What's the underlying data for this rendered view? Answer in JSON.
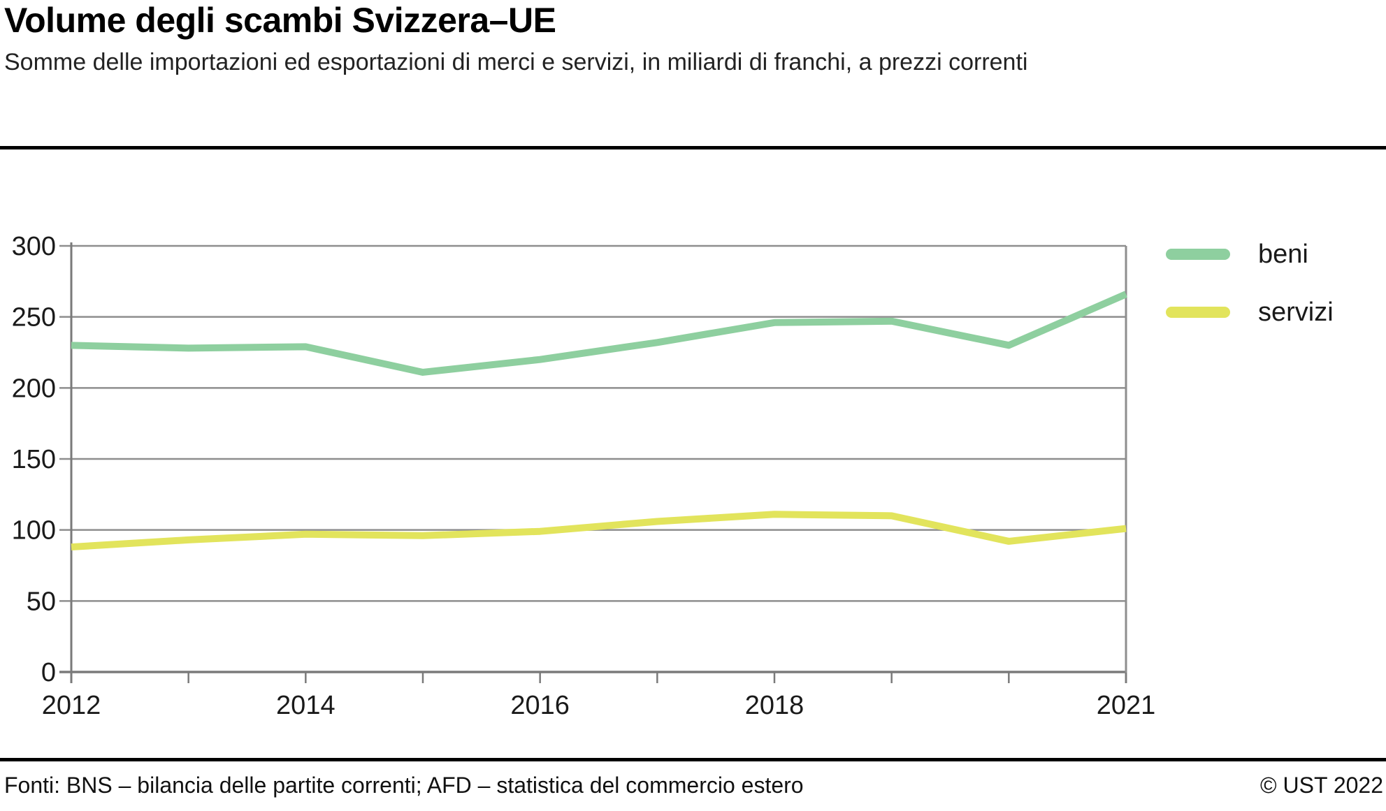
{
  "header": {
    "title": "Volume degli scambi Svizzera–UE",
    "subtitle": "Somme delle importazioni ed esportazioni di merci e servizi, in miliardi di franchi, a prezzi correnti"
  },
  "footer": {
    "sources": "Fonti: BNS – bilancia delle partite correnti; AFD – statistica del commercio estero",
    "copyright": "© UST 2022"
  },
  "colors": {
    "beni_line": "#8ecf9f",
    "servizi_line": "#e2e45c",
    "grid": "#8e8e8e",
    "axis": "#7a7a7a",
    "text": "#1a1a1a",
    "divider": "#000000"
  },
  "chart_data": {
    "type": "line",
    "title": "Volume degli scambi Svizzera–UE",
    "subtitle": "Somme delle importazioni ed esportazioni di merci e servizi, in miliardi di franchi, a prezzi correnti",
    "x": [
      2012,
      2013,
      2014,
      2015,
      2016,
      2017,
      2018,
      2019,
      2020,
      2021
    ],
    "xtick_labels": [
      "2012",
      "2014",
      "2016",
      "2018",
      "2021"
    ],
    "yticks": [
      0,
      50,
      100,
      150,
      200,
      250,
      300
    ],
    "ylim": [
      0,
      300
    ],
    "xlabel": "",
    "ylabel": "",
    "grid": true,
    "legend_position": "outside-top-right",
    "series": [
      {
        "name": "beni",
        "color": "#8ecf9f",
        "values": [
          230,
          228,
          229,
          211,
          220,
          232,
          246,
          247,
          230,
          266
        ]
      },
      {
        "name": "servizi",
        "color": "#e2e45c",
        "values": [
          88,
          93,
          97,
          96,
          99,
          106,
          111,
          110,
          92,
          101
        ]
      }
    ]
  }
}
